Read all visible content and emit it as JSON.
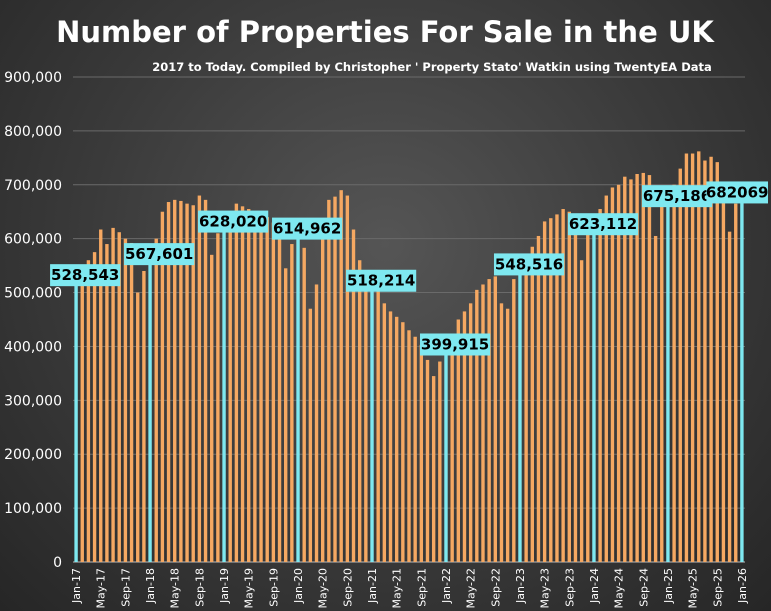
{
  "chart_data": {
    "type": "bar",
    "title": "Number of Properties For Sale in the UK",
    "subtitle": "2017 to Today. Compiled by Christopher ' Property Stato' Watkin using TwentyEA Data",
    "xlabel": "",
    "ylabel": "",
    "ylim": [
      0,
      900000
    ],
    "yticks": [
      "0",
      "100,000",
      "200,000",
      "300,000",
      "400,000",
      "500,000",
      "600,000",
      "700,000",
      "800,000",
      "900,000"
    ],
    "xtick_labels": [
      "Jan-17",
      "May-17",
      "Sep-17",
      "Jan-18",
      "May-18",
      "Sep-18",
      "Jan-19",
      "May-19",
      "Sep-19",
      "Jan-20",
      "May-20",
      "Sep-20",
      "Jan-21",
      "May-21",
      "Sep-21",
      "Jan-22",
      "May-22",
      "Sep-22",
      "Jan-23",
      "May-23",
      "Sep-23",
      "Jan-24",
      "May-24",
      "Sep-24",
      "Jan-25",
      "May-25",
      "Sep-25",
      "Jan-26"
    ],
    "grid": true,
    "legend": "none",
    "colors": {
      "bar": "#f5a862",
      "highlight": "#7ee8f0",
      "label_box": "#7ee8f0",
      "grid": "#6a6a6a"
    },
    "start_month": "Jan-17",
    "values": [
      528543,
      530000,
      560000,
      575000,
      617000,
      590000,
      620000,
      612000,
      600000,
      592000,
      500000,
      540000,
      567601,
      600000,
      650000,
      668000,
      672000,
      670000,
      665000,
      662000,
      680000,
      672000,
      570000,
      610000,
      628020,
      645000,
      665000,
      660000,
      655000,
      650000,
      648000,
      640000,
      630000,
      605000,
      545000,
      590000,
      614962,
      583000,
      470000,
      515000,
      615000,
      672000,
      678000,
      690000,
      680000,
      617000,
      560000,
      530000,
      518214,
      507000,
      480000,
      465000,
      455000,
      445000,
      430000,
      418000,
      403000,
      375000,
      345000,
      372000,
      399915,
      420000,
      450000,
      465000,
      480000,
      505000,
      515000,
      525000,
      530000,
      480000,
      470000,
      525000,
      548516,
      565000,
      585000,
      605000,
      632000,
      638000,
      645000,
      655000,
      650000,
      640000,
      560000,
      610000,
      623112,
      655000,
      680000,
      695000,
      700000,
      715000,
      710000,
      720000,
      722000,
      718000,
      605000,
      660000,
      675186,
      700000,
      730000,
      758000,
      758000,
      762000,
      745000,
      752000,
      742000,
      680000,
      613000,
      665000,
      682069
    ],
    "highlighted_points": [
      {
        "month": "Jan-17",
        "value": 528543,
        "label": "528,543"
      },
      {
        "month": "Jan-18",
        "value": 567601,
        "label": "567,601"
      },
      {
        "month": "Jan-19",
        "value": 628020,
        "label": "628,020"
      },
      {
        "month": "Jan-20",
        "value": 614962,
        "label": "614,962"
      },
      {
        "month": "Jan-21",
        "value": 518214,
        "label": "518,214"
      },
      {
        "month": "Jan-22",
        "value": 399915,
        "label": "399,915"
      },
      {
        "month": "Jan-23",
        "value": 548516,
        "label": "548,516"
      },
      {
        "month": "Jan-24",
        "value": 623112,
        "label": "623,112"
      },
      {
        "month": "Jan-25",
        "value": 675186,
        "label": "675,186"
      },
      {
        "month": "Jan-26",
        "value": 682069,
        "label": "682069"
      }
    ]
  }
}
